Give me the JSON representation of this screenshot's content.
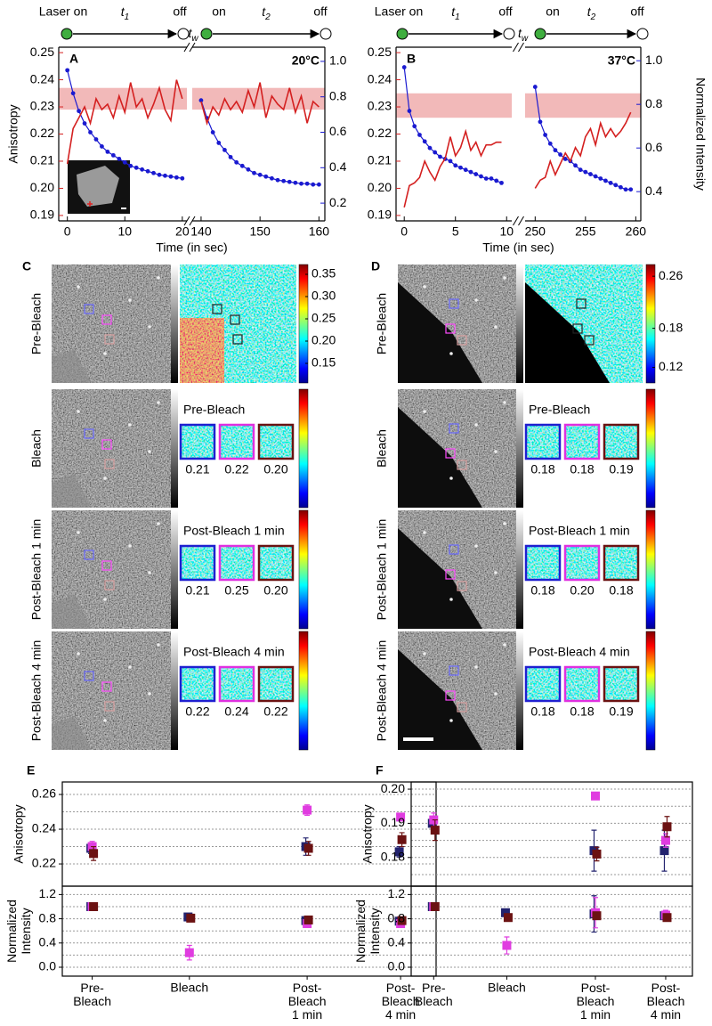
{
  "chart_data": [
    {
      "type": "line",
      "panel": "A",
      "annotation": "20°C",
      "timeline": [
        "Laser on",
        "t1",
        "off",
        "tw",
        "on",
        "t2",
        "off"
      ],
      "xlabel": "Time (in sec)",
      "ylabel": "Anisotropy",
      "xlim": [
        -1.5,
        161
      ],
      "xbreak": [
        20.8,
        138.5
      ],
      "xticks": [
        0,
        10,
        20,
        140,
        150,
        160
      ],
      "ylim": [
        0.188,
        0.252
      ],
      "yticks": [
        0.19,
        {
          "value": 0.2,
          "label": "0.20"
        },
        0.21,
        0.22,
        0.23,
        0.24,
        0.25
      ],
      "y2lim": [
        0.1,
        1.08
      ],
      "y2ticks": [
        0.2,
        0.4,
        0.6,
        0.8,
        {
          "value": 1,
          "label": "1.0"
        }
      ],
      "band": [
        0.229,
        0.237
      ],
      "band_color": "#f2b9b9",
      "x": [
        0,
        1,
        2,
        3,
        4,
        5,
        6,
        7,
        8,
        9,
        10,
        11,
        12,
        13,
        14,
        15,
        16,
        17,
        18,
        19,
        20,
        80,
        140,
        141,
        142,
        143,
        144,
        145,
        146,
        147,
        148,
        149,
        150,
        151,
        152,
        153,
        154,
        155,
        156,
        157,
        158,
        159,
        160
      ],
      "series": [
        {
          "color": "#1a1ad0",
          "axis": "y2",
          "marker": true,
          "values": [
            0.95,
            0.82,
            0.72,
            0.65,
            0.6,
            0.56,
            0.52,
            0.49,
            0.47,
            0.45,
            0.43,
            0.41,
            0.4,
            0.39,
            0.38,
            0.37,
            0.36,
            0.355,
            0.35,
            0.345,
            0.34,
            null,
            0.78,
            0.68,
            0.6,
            0.54,
            0.5,
            0.46,
            0.43,
            0.41,
            0.39,
            0.37,
            0.36,
            0.35,
            0.34,
            0.33,
            0.325,
            0.32,
            0.315,
            0.31,
            0.31,
            0.305,
            0.305
          ]
        },
        {
          "color": "#d42020",
          "axis": "y",
          "marker": false,
          "values": [
            0.209,
            0.222,
            0.226,
            0.23,
            0.224,
            0.233,
            0.229,
            0.231,
            0.226,
            0.234,
            0.228,
            0.239,
            0.23,
            0.233,
            0.226,
            0.231,
            0.237,
            0.229,
            0.225,
            0.24,
            0.233,
            null,
            0.232,
            0.224,
            0.23,
            0.227,
            0.233,
            0.229,
            0.232,
            0.228,
            0.236,
            0.23,
            0.239,
            0.226,
            0.234,
            0.231,
            0.229,
            0.237,
            0.228,
            0.234,
            0.224,
            0.232,
            0.23
          ]
        }
      ]
    },
    {
      "type": "line",
      "panel": "B",
      "annotation": "37°C",
      "timeline": [
        "Laser on",
        "t1",
        "off",
        "tw",
        "on",
        "t2",
        "off"
      ],
      "xlabel": "Time (in sec)",
      "y2label": "Normalized Intensity",
      "xlim": [
        -0.8,
        260.5
      ],
      "xbreak": [
        10.5,
        249
      ],
      "xticks": [
        0,
        5,
        10,
        250,
        255,
        260
      ],
      "ylim": [
        0.188,
        0.252
      ],
      "yticks": [
        0.19,
        {
          "value": 0.2,
          "label": "0.20"
        },
        0.21,
        0.22,
        0.23,
        0.24,
        0.25
      ],
      "y2lim": [
        0.266,
        1.062
      ],
      "y2ticks": [
        0.4,
        0.6,
        0.8,
        {
          "value": 1,
          "label": "1.0"
        }
      ],
      "band": [
        0.226,
        0.235
      ],
      "band_color": "#f2b9b9",
      "x": [
        0,
        0.5,
        1,
        1.5,
        2,
        2.5,
        3,
        3.5,
        4,
        4.5,
        5,
        5.5,
        6,
        6.5,
        7,
        7.5,
        8,
        8.5,
        9,
        9.5,
        100,
        250,
        250.5,
        251,
        251.5,
        252,
        252.5,
        253,
        253.5,
        254,
        254.5,
        255,
        255.5,
        256,
        256.5,
        257,
        257.5,
        258,
        258.5,
        259,
        259.5
      ],
      "series": [
        {
          "color": "#1a1ad0",
          "axis": "y2",
          "marker": true,
          "values": [
            0.97,
            0.77,
            0.7,
            0.66,
            0.63,
            0.6,
            0.58,
            0.56,
            0.55,
            0.54,
            0.52,
            0.51,
            0.5,
            0.49,
            0.48,
            0.47,
            0.46,
            0.46,
            0.45,
            0.44,
            null,
            0.88,
            0.72,
            0.66,
            0.62,
            0.59,
            0.57,
            0.55,
            0.54,
            0.52,
            0.5,
            0.49,
            0.48,
            0.47,
            0.46,
            0.45,
            0.44,
            0.43,
            0.42,
            0.41,
            0.41
          ]
        },
        {
          "color": "#d42020",
          "axis": "y",
          "marker": false,
          "values": [
            0.193,
            0.201,
            0.202,
            0.204,
            0.21,
            0.206,
            0.203,
            0.208,
            0.211,
            0.219,
            0.212,
            0.215,
            0.221,
            0.214,
            0.217,
            0.212,
            0.216,
            0.216,
            0.217,
            0.217,
            null,
            0.2,
            0.203,
            0.204,
            0.21,
            0.205,
            0.209,
            0.213,
            0.21,
            0.215,
            0.212,
            0.219,
            0.222,
            0.216,
            0.224,
            0.219,
            0.222,
            0.219,
            0.221,
            0.224,
            0.228
          ]
        }
      ]
    },
    {
      "type": "scatter",
      "panel": "E",
      "ylabel": "Anisotropy",
      "grid": true,
      "ylim": [
        0.2072,
        0.2672
      ],
      "yticks": [
        0.22,
        0.24,
        0.26
      ],
      "minor_yticks": [
        0.23,
        0.25
      ],
      "series": [
        {
          "color": "#22226e",
          "values": [
            0.229,
            null,
            0.23,
            0.227
          ],
          "errors": [
            0.003,
            null,
            0.005,
            0.003
          ]
        },
        {
          "color": "#e03ce0",
          "values": [
            0.23,
            null,
            0.251,
            0.247
          ],
          "errors": [
            0.003,
            null,
            0.003,
            0.002
          ]
        },
        {
          "color": "#6b1212",
          "values": [
            0.226,
            null,
            0.229,
            0.234
          ],
          "errors": [
            0.004,
            null,
            0.004,
            0.004
          ]
        }
      ]
    },
    {
      "type": "scatter",
      "ylabel": "Normalized\nIntensity",
      "grid": true,
      "categories": [
        "Pre-\nBleach",
        "Bleach",
        "Post-\nBleach\n1 min",
        "Post-\nBleach\n4 min"
      ],
      "ylim": [
        -0.147,
        1.338
      ],
      "yticks": [
        {
          "value": 0,
          "label": "0.0"
        },
        0.4,
        0.8,
        1.2
      ],
      "minor_yticks": [
        0.2,
        0.6,
        1
      ],
      "series": [
        {
          "color": "#22226e",
          "values": [
            1,
            0.83,
            0.77,
            0.76
          ],
          "errors": [
            null,
            0.04,
            null,
            null
          ]
        },
        {
          "color": "#e03ce0",
          "values": [
            1,
            0.24,
            0.72,
            0.72
          ],
          "errors": [
            null,
            0.12,
            null,
            null
          ]
        },
        {
          "color": "#6b1212",
          "values": [
            1,
            0.81,
            0.78,
            0.77
          ]
        }
      ]
    },
    {
      "type": "scatter",
      "panel": "F",
      "ylabel": "Anisotropy",
      "grid": true,
      "ylim": [
        0.1716,
        0.2021
      ],
      "yticks": [
        {
          "value": 0.2,
          "label": "0.20"
        },
        0.19,
        0.18
      ],
      "minor_yticks": [
        0.175,
        0.185,
        0.195
      ],
      "series": [
        {
          "color": "#22226e",
          "values": [
            0.19,
            null,
            0.182,
            0.182
          ],
          "errors": [
            null,
            null,
            0.006,
            0.006
          ]
        },
        {
          "color": "#e03ce0",
          "values": [
            0.191,
            null,
            0.198,
            0.185
          ],
          "errors": [
            0.002,
            null,
            0.001,
            0.002
          ]
        },
        {
          "color": "#6b1212",
          "values": [
            0.188,
            null,
            0.181,
            0.189
          ],
          "errors": [
            0.003,
            null,
            0.002,
            0.003
          ]
        }
      ]
    },
    {
      "type": "scatter",
      "ylabel": "Normalized\nIntensity",
      "grid": true,
      "categories": [
        "Pre-\nBleach",
        "Bleach",
        "Post-\nBleach\n1 min",
        "Post-\nBleach\n4 min"
      ],
      "ylim": [
        -0.147,
        1.338
      ],
      "yticks": [
        {
          "value": 0,
          "label": "0.0"
        },
        0.4,
        0.8,
        1.2
      ],
      "minor_yticks": [
        0.2,
        0.6,
        1
      ],
      "series": [
        {
          "color": "#22226e",
          "values": [
            1,
            0.9,
            0.88,
            0.85
          ],
          "errors": [
            null,
            0.05,
            0.3,
            null
          ]
        },
        {
          "color": "#e03ce0",
          "values": [
            1,
            0.36,
            0.9,
            0.86
          ],
          "errors": [
            null,
            0.14,
            0.25,
            0.08
          ]
        },
        {
          "color": "#6b1212",
          "values": [
            1,
            0.82,
            0.85,
            0.82
          ]
        }
      ]
    }
  ],
  "image_panels": [
    {
      "label": "C",
      "colorbar_lim": [
        0.106,
        0.372
      ],
      "colorbar_ticks": [
        0.35,
        {
          "value": 0.3,
          "label": "0.30"
        },
        0.25,
        {
          "value": 0.2,
          "label": "0.20"
        },
        0.15
      ],
      "rows": [
        {
          "label": "Pre-Bleach"
        },
        {
          "label": "Bleach",
          "roi_title": "Pre-Bleach",
          "roi_values": [
            "0.21",
            "0.22",
            "0.20"
          ]
        },
        {
          "label": "Post-Bleach 1 min",
          "roi_title": "Post-Bleach 1 min",
          "roi_values": [
            "0.21",
            "0.25",
            "0.20"
          ]
        },
        {
          "label": "Post-Bleach 4 min",
          "roi_title": "Post-Bleach 4 min",
          "roi_values": [
            "0.22",
            "0.24",
            "0.22"
          ]
        }
      ]
    },
    {
      "label": "D",
      "colorbar_lim": [
        0.096,
        0.278
      ],
      "colorbar_ticks": [
        0.26,
        0.18,
        0.12
      ],
      "rows": [
        {
          "label": "Pre-Bleach"
        },
        {
          "label": "Bleach",
          "roi_title": "Pre-Bleach",
          "roi_values": [
            "0.18",
            "0.18",
            "0.19"
          ]
        },
        {
          "label": "Post-Bleach 1 min",
          "roi_title": "Post-Bleach 1 min",
          "roi_values": [
            "0.18",
            "0.20",
            "0.18"
          ]
        },
        {
          "label": "Post-Bleach 4 min",
          "roi_title": "Post-Bleach 4 min",
          "roi_values": [
            "0.18",
            "0.18",
            "0.19"
          ]
        }
      ]
    }
  ]
}
